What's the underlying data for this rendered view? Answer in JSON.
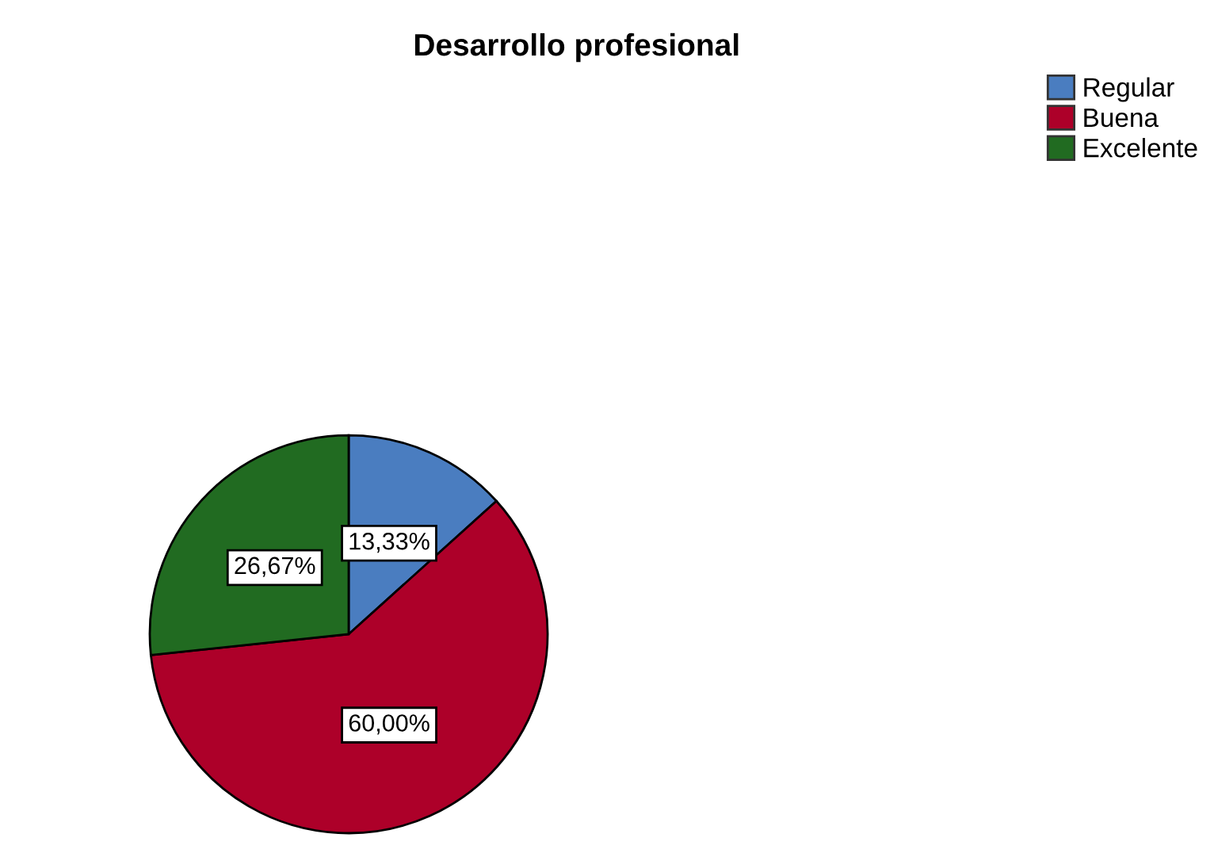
{
  "chart_data": {
    "type": "pie",
    "title": "Desarrollo profesional",
    "categories": [
      "Regular",
      "Buena",
      "Excelente"
    ],
    "values": [
      13.33,
      60.0,
      26.67
    ],
    "value_labels": [
      "13,33%",
      "60,00%",
      "26,67%"
    ],
    "colors": [
      "#4a7dc0",
      "#ad0029",
      "#216b21"
    ],
    "legend": "top right"
  }
}
